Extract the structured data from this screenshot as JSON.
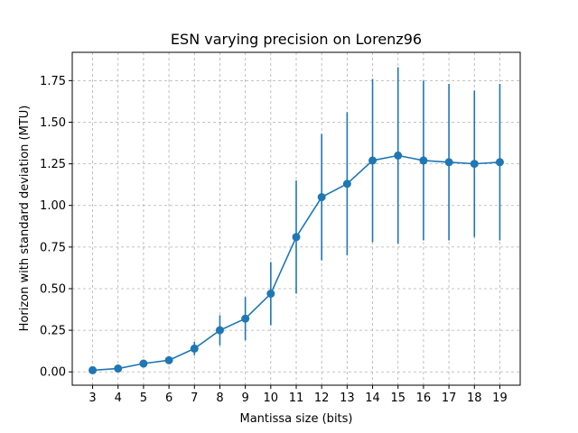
{
  "chart_data": {
    "type": "line",
    "title": "ESN varying precision on Lorenz96",
    "xlabel": "Mantissa size (bits)",
    "ylabel": "Horizon with standard deviation (MTU)",
    "x": [
      3,
      4,
      5,
      6,
      7,
      8,
      9,
      10,
      11,
      12,
      13,
      14,
      15,
      16,
      17,
      18,
      19
    ],
    "series": [
      {
        "values": [
          0.01,
          0.02,
          0.05,
          0.07,
          0.14,
          0.25,
          0.32,
          0.47,
          0.81,
          1.05,
          1.13,
          1.27,
          1.3,
          1.27,
          1.26,
          1.25,
          1.26
        ],
        "error": [
          0.0,
          0.0,
          0.0,
          0.0,
          0.04,
          0.09,
          0.13,
          0.19,
          0.34,
          0.38,
          0.43,
          0.49,
          0.53,
          0.48,
          0.47,
          0.44,
          0.47
        ],
        "color": "#1f77b4"
      }
    ],
    "xlim": [
      2.2,
      19.8
    ],
    "ylim": [
      -0.08,
      1.92
    ],
    "xticks": [
      "3",
      "4",
      "5",
      "6",
      "7",
      "8",
      "9",
      "10",
      "11",
      "12",
      "13",
      "14",
      "15",
      "16",
      "17",
      "18",
      "19"
    ],
    "yticks": [
      "0.00",
      "0.25",
      "0.50",
      "0.75",
      "1.00",
      "1.25",
      "1.50",
      "1.75"
    ],
    "ytick_values": [
      0,
      0.25,
      0.5,
      0.75,
      1.0,
      1.25,
      1.5,
      1.75
    ],
    "grid": true,
    "grid_style": "dashed"
  }
}
